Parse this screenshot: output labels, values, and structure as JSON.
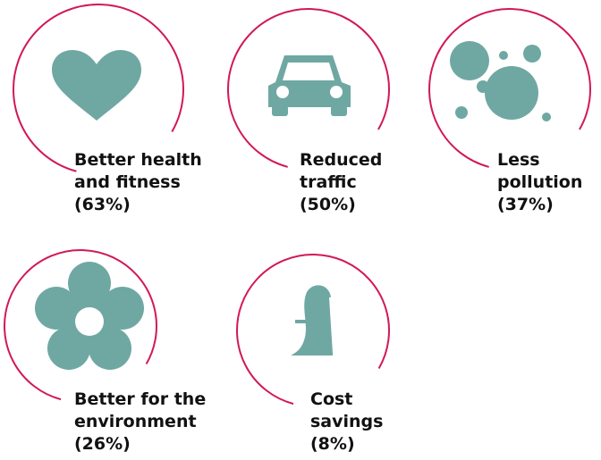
{
  "items": [
    {
      "lines": [
        "Better health",
        "and fitness",
        "(63%)"
      ]
    },
    {
      "lines": [
        "Reduced",
        "traffic",
        "(50%)"
      ]
    },
    {
      "lines": [
        "Less",
        "pollution",
        "(37%)"
      ]
    },
    {
      "lines": [
        "Better for the",
        "environment",
        "(26%)"
      ]
    },
    {
      "lines": [
        "Cost",
        "savings",
        "(8%)"
      ]
    }
  ]
}
